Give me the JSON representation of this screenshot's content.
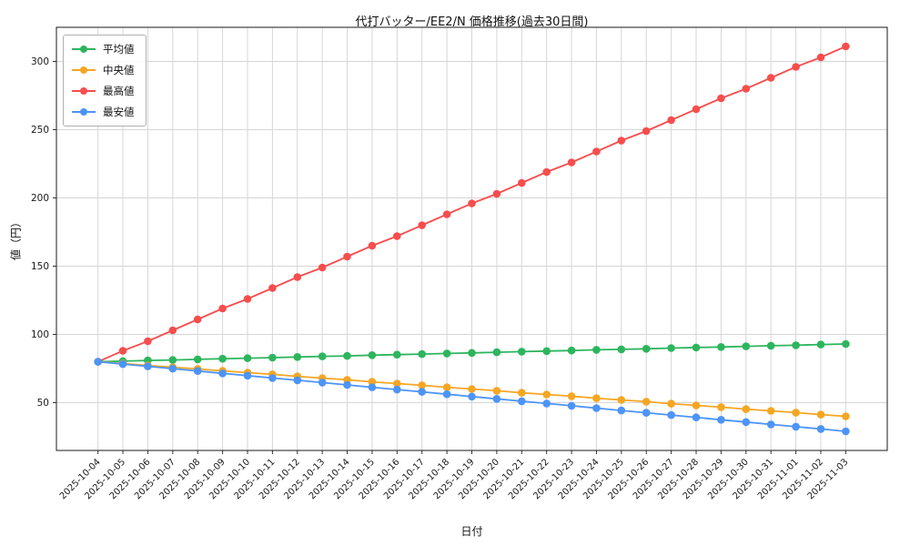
{
  "chart_data": {
    "type": "line",
    "title": "代打バッター/EE2/N 価格推移(過去30日間)",
    "xlabel": "日付",
    "ylabel": "値（円）",
    "ylim": [
      15,
      325
    ],
    "yticks": [
      50,
      100,
      150,
      200,
      250,
      300
    ],
    "grid": true,
    "legend_position": "upper left",
    "categories": [
      "2025-10-04",
      "2025-10-05",
      "2025-10-06",
      "2025-10-07",
      "2025-10-08",
      "2025-10-09",
      "2025-10-10",
      "2025-10-11",
      "2025-10-12",
      "2025-10-13",
      "2025-10-14",
      "2025-10-15",
      "2025-10-16",
      "2025-10-17",
      "2025-10-18",
      "2025-10-19",
      "2025-10-20",
      "2025-10-21",
      "2025-10-22",
      "2025-10-23",
      "2025-10-24",
      "2025-10-25",
      "2025-10-26",
      "2025-10-27",
      "2025-10-28",
      "2025-10-29",
      "2025-10-30",
      "2025-10-31",
      "2025-11-01",
      "2025-11-02",
      "2025-11-03"
    ],
    "series": [
      {
        "name": "平均値",
        "color": "#2db55d",
        "values": [
          80.0,
          80.4,
          80.9,
          81.3,
          81.7,
          82.2,
          82.6,
          83.0,
          83.5,
          83.9,
          84.3,
          84.8,
          85.2,
          85.6,
          86.1,
          86.5,
          86.9,
          87.4,
          87.8,
          88.2,
          88.7,
          89.1,
          89.5,
          90.0,
          90.4,
          90.8,
          91.3,
          91.7,
          92.1,
          92.6,
          93.0
        ]
      },
      {
        "name": "中央値",
        "color": "#f5a623",
        "values": [
          80.0,
          78.7,
          77.3,
          76.0,
          74.7,
          73.3,
          72.0,
          70.7,
          69.3,
          68.0,
          66.7,
          65.3,
          64.0,
          62.7,
          61.3,
          60.0,
          58.7,
          57.3,
          56.0,
          54.7,
          53.3,
          52.0,
          50.7,
          49.3,
          48.0,
          46.7,
          45.3,
          44.0,
          42.7,
          41.3,
          40.0
        ]
      },
      {
        "name": "最高値",
        "color": "#f74d4d",
        "values": [
          80,
          88,
          95,
          103,
          111,
          119,
          126,
          134,
          142,
          149,
          157,
          165,
          172,
          180,
          188,
          196,
          203,
          211,
          219,
          226,
          234,
          242,
          249,
          257,
          265,
          273,
          280,
          288,
          296,
          303,
          311
        ]
      },
      {
        "name": "最安値",
        "color": "#4d94f7",
        "values": [
          80.0,
          78.3,
          76.6,
          74.9,
          73.2,
          71.5,
          69.8,
          68.1,
          66.4,
          64.7,
          63.0,
          61.3,
          59.6,
          57.9,
          56.2,
          54.5,
          52.8,
          51.1,
          49.4,
          47.7,
          46.0,
          44.3,
          42.6,
          40.9,
          39.2,
          37.5,
          35.8,
          34.1,
          32.4,
          30.7,
          29.0
        ]
      }
    ]
  }
}
